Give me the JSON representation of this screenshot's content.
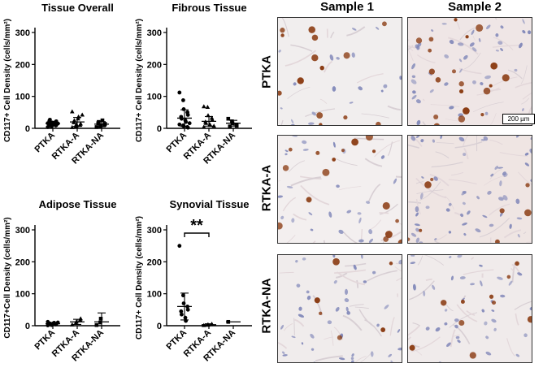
{
  "chart_data": [
    {
      "type": "scatter",
      "title": "Tissue Overall",
      "ylabel": "CD117+ Cell Density (cells/mm²)",
      "ylim": [
        0,
        300
      ],
      "yticks": [
        0,
        100,
        200,
        300
      ],
      "categories": [
        "PTKA",
        "RTKA-A",
        "RTKA-NA"
      ],
      "markers": [
        "circle",
        "triangle",
        "square"
      ],
      "points": [
        [
          4,
          6,
          8,
          9,
          10,
          11,
          12,
          13,
          14,
          15,
          16,
          17,
          18,
          20,
          22,
          24,
          27
        ],
        [
          3,
          6,
          8,
          10,
          14,
          18,
          24,
          30,
          36,
          42,
          52,
          4,
          12
        ],
        [
          4,
          7,
          9,
          11,
          14,
          16,
          20,
          25
        ]
      ],
      "mean": [
        15,
        20,
        13
      ],
      "sd": [
        7,
        14,
        8
      ],
      "annotation": ""
    },
    {
      "type": "scatter",
      "title": "Fibrous Tissue",
      "ylabel": "CD117+ Cell Density (cells/mm²)",
      "ylim": [
        0,
        300
      ],
      "yticks": [
        0,
        100,
        200,
        300
      ],
      "categories": [
        "PTKA",
        "RTKA-A",
        "RTKA-NA"
      ],
      "markers": [
        "circle",
        "triangle",
        "square"
      ],
      "points": [
        [
          112,
          88,
          60,
          50,
          42,
          36,
          30,
          25,
          20,
          16,
          12,
          9,
          7,
          4,
          2
        ],
        [
          68,
          66,
          40,
          32,
          26,
          20,
          16,
          12,
          10,
          7,
          4
        ],
        [
          30,
          22,
          16,
          12,
          8,
          6
        ]
      ],
      "mean": [
        32,
        22,
        16
      ],
      "sd": [
        26,
        15,
        9
      ],
      "annotation": ""
    },
    {
      "type": "scatter",
      "title": "Adipose Tissue",
      "ylabel": "CD117+Cell Density (cells/mm²)",
      "ylim": [
        0,
        300
      ],
      "yticks": [
        0,
        100,
        200,
        300
      ],
      "categories": [
        "PTKA",
        "RTKA-A",
        "RTKA-NA"
      ],
      "markers": [
        "circle",
        "triangle",
        "square"
      ],
      "points": [
        [
          1,
          2,
          3,
          4,
          5,
          6,
          7,
          8,
          9,
          10,
          12
        ],
        [
          3,
          8,
          12,
          18,
          22
        ],
        [
          2,
          10,
          22
        ]
      ],
      "mean": [
        6,
        12,
        12
      ],
      "sd": [
        4,
        8,
        28
      ],
      "annotation": ""
    },
    {
      "type": "scatter",
      "title": "Synovial Tissue",
      "ylabel": "CD117+ Cell Density (cells/mm²)",
      "ylim": [
        0,
        300
      ],
      "yticks": [
        0,
        100,
        200,
        300
      ],
      "categories": [
        "PTKA",
        "RTKA-A",
        "RTKA-NA"
      ],
      "markers": [
        "circle",
        "triangle",
        "square"
      ],
      "points": [
        [
          250,
          95,
          70,
          60,
          50,
          45,
          35,
          25,
          15
        ],
        [
          1,
          2,
          3,
          5
        ],
        [
          12
        ]
      ],
      "mean": [
        60,
        3,
        12
      ],
      "sd": [
        42,
        3,
        0
      ],
      "annotation": "**"
    }
  ],
  "micrographs": {
    "column_headers": [
      "Sample 1",
      "Sample 2"
    ],
    "row_labels": [
      "PTKA",
      "RTKA-A",
      "RTKA-NA"
    ],
    "scale_bar": "200 µm",
    "stain_color": "#8a3b12",
    "nuclei_color": "#7f86b8"
  }
}
